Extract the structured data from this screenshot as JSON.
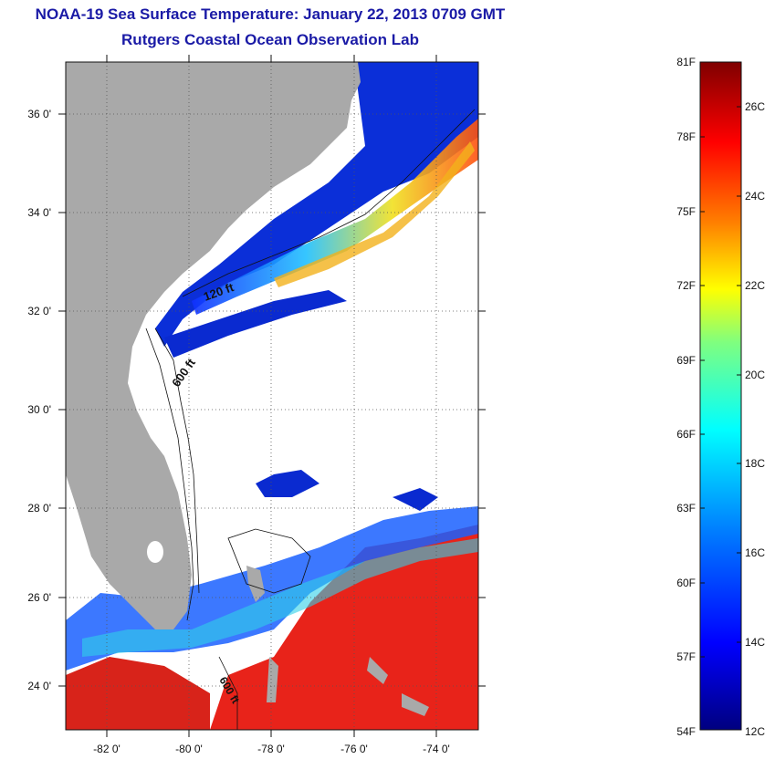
{
  "header": {
    "title": "NOAA-19 Sea Surface Temperature:  January 22, 2013 0709 GMT",
    "subtitle": "Rutgers Coastal Ocean Observation Lab"
  },
  "map": {
    "lat_ticks": [
      "36 0'",
      "34 0'",
      "32 0'",
      "30 0'",
      "28 0'",
      "26 0'",
      "24 0'"
    ],
    "lon_ticks": [
      "-82 0'",
      "-80 0'",
      "-78 0'",
      "-76 0'",
      "-74 0'"
    ],
    "contour_labels": [
      "120 ft",
      "600 ft",
      "600 ft"
    ],
    "colors": {
      "land": "#a9a9a9",
      "cloud_mask": "#ffffff",
      "grid": "#555555"
    }
  },
  "colorbar": {
    "fahrenheit": [
      "81F",
      "78F",
      "75F",
      "72F",
      "69F",
      "66F",
      "63F",
      "60F",
      "57F",
      "54F"
    ],
    "celsius": [
      "26C",
      "24C",
      "22C",
      "20C",
      "18C",
      "16C",
      "14C",
      "12C"
    ],
    "stops": [
      "#00007f",
      "#0000ff",
      "#007fff",
      "#00ffff",
      "#7fff7f",
      "#ffff00",
      "#ff7f00",
      "#ff0000",
      "#7f0000"
    ]
  }
}
